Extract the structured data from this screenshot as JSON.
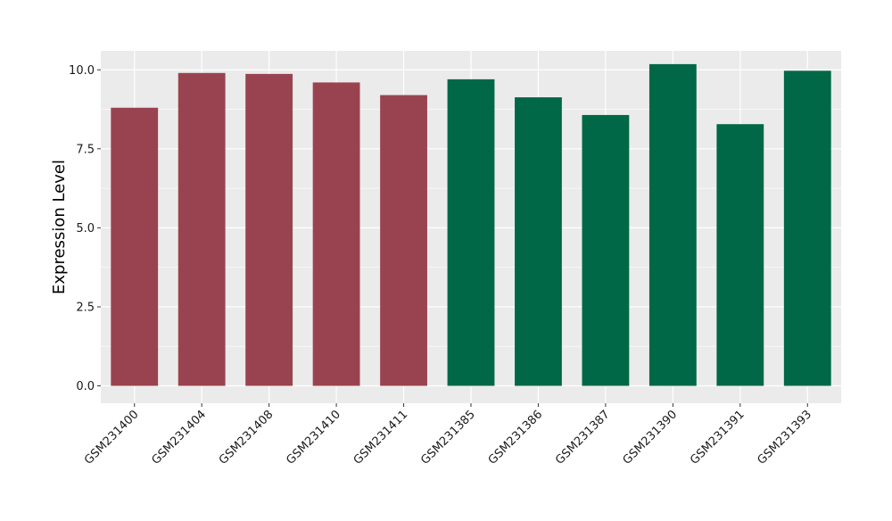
{
  "chart_data": {
    "type": "bar",
    "title": "",
    "xlabel": "",
    "ylabel": "Expression Level",
    "categories": [
      "GSM231400",
      "GSM231404",
      "GSM231408",
      "GSM231410",
      "GSM231411",
      "GSM231385",
      "GSM231386",
      "GSM231387",
      "GSM231390",
      "GSM231391",
      "GSM231393"
    ],
    "values": [
      8.8,
      9.9,
      9.87,
      9.6,
      9.2,
      9.7,
      9.13,
      8.57,
      10.18,
      8.28,
      9.97
    ],
    "bar_colors": [
      "#9a4350",
      "#9a4350",
      "#9a4350",
      "#9a4350",
      "#9a4350",
      "#006846",
      "#006846",
      "#006846",
      "#006846",
      "#006846",
      "#006846"
    ],
    "ylim": [
      -0.55,
      10.6
    ],
    "yticks": [
      0.0,
      2.5,
      5.0,
      7.5,
      10.0
    ],
    "ytick_labels": [
      "0.0",
      "2.5",
      "5.0",
      "7.5",
      "10.0"
    ],
    "grid": true,
    "legend": "none",
    "panel_background": "#ebebeb",
    "gridline_color": "#ffffff"
  }
}
